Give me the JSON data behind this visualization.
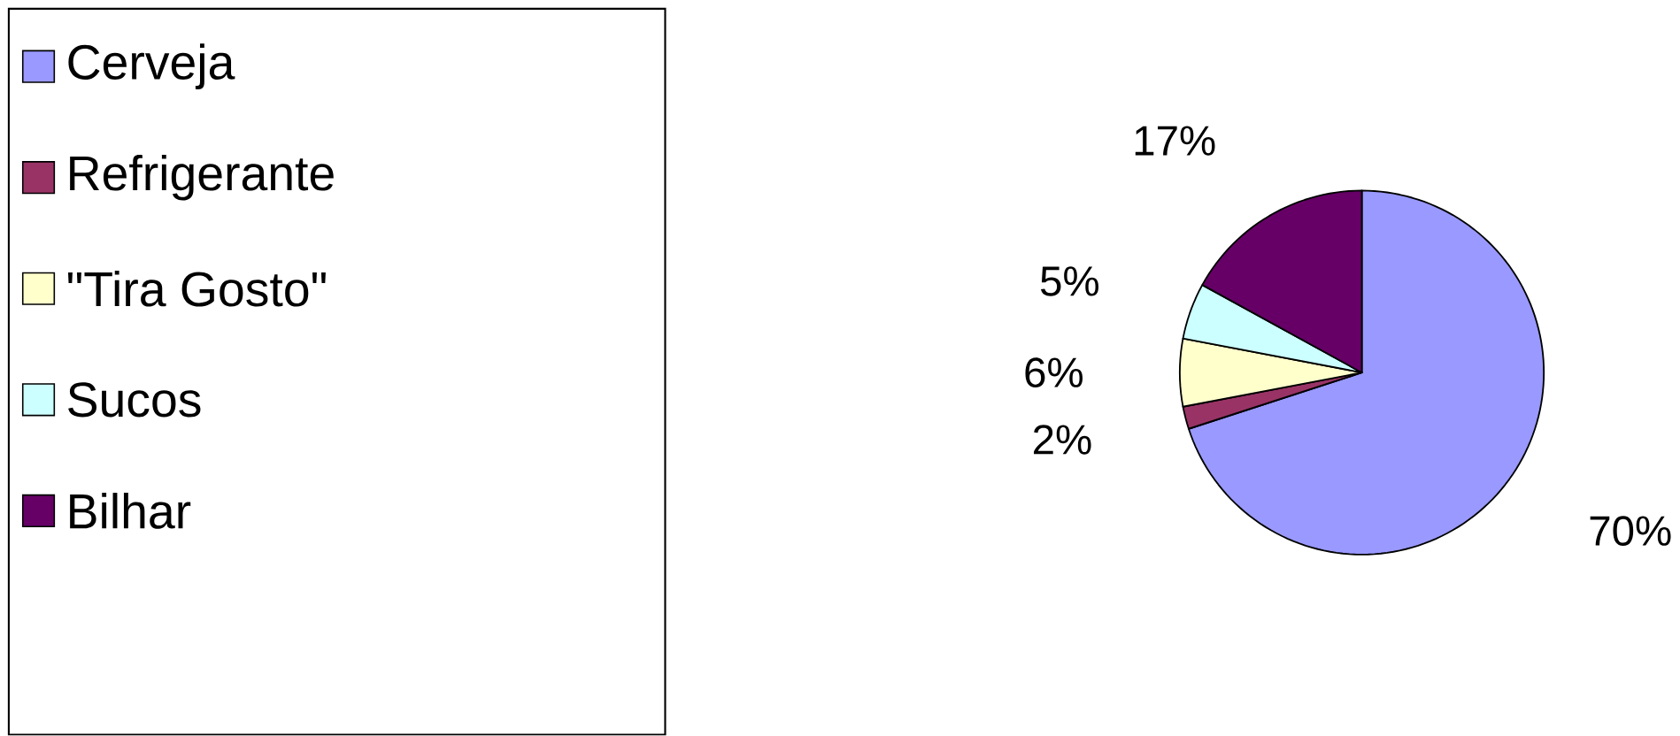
{
  "chart_data": {
    "type": "pie",
    "categories": [
      "Cerveja",
      "Refrigerante",
      "\"Tira Gosto\"",
      "Sucos",
      "Bilhar"
    ],
    "values": [
      70,
      2,
      6,
      5,
      17
    ],
    "value_labels": [
      "70%",
      "2%",
      "6%",
      "5%",
      "17%"
    ],
    "colors": [
      "#9999ff",
      "#993366",
      "#ffffcc",
      "#ccffff",
      "#660066"
    ],
    "legend": "left"
  }
}
